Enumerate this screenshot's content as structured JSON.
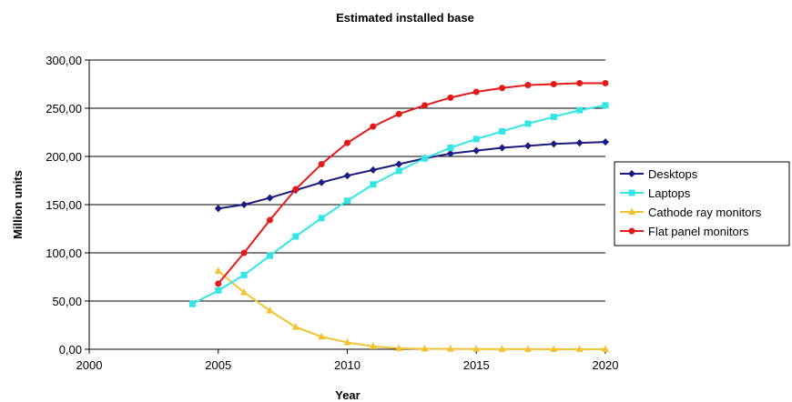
{
  "chart_data": {
    "type": "line",
    "title": "Estimated installed base",
    "xlabel": "Year",
    "ylabel": "Million units",
    "xlim": [
      2000,
      2020
    ],
    "ylim": [
      0,
      300
    ],
    "x_ticks": [
      "2000",
      "2005",
      "2010",
      "2015",
      "2020"
    ],
    "y_ticks": [
      "0,00",
      "50,00",
      "100,00",
      "150,00",
      "200,00",
      "250,00",
      "300,00"
    ],
    "grid": "horizontal",
    "legend_position": "right",
    "series": [
      {
        "name": "Desktops",
        "color": "#1a1a80",
        "marker": "diamond",
        "x": [
          2005,
          2006,
          2007,
          2008,
          2009,
          2010,
          2011,
          2012,
          2013,
          2014,
          2015,
          2016,
          2017,
          2018,
          2019,
          2020
        ],
        "values": [
          146,
          150,
          157,
          165,
          173,
          180,
          186,
          192,
          198,
          203,
          206,
          209,
          211,
          213,
          214,
          215
        ]
      },
      {
        "name": "Laptops",
        "color": "#33e6e6",
        "marker": "square",
        "x": [
          2004,
          2005,
          2006,
          2007,
          2008,
          2009,
          2010,
          2011,
          2012,
          2013,
          2014,
          2015,
          2016,
          2017,
          2018,
          2019,
          2020
        ],
        "values": [
          47,
          61,
          77,
          97,
          117,
          136,
          154,
          171,
          185,
          198,
          209,
          218,
          226,
          234,
          241,
          248,
          253
        ]
      },
      {
        "name": "Cathode ray monitors",
        "color": "#f2c233",
        "marker": "triangle",
        "x": [
          2005,
          2006,
          2007,
          2008,
          2009,
          2010,
          2011,
          2012,
          2013,
          2014,
          2015,
          2016,
          2017,
          2018,
          2019,
          2020
        ],
        "values": [
          81,
          59,
          40,
          23,
          13,
          7,
          3,
          1,
          0.5,
          0.3,
          0.2,
          0.1,
          0.1,
          0,
          0,
          0
        ]
      },
      {
        "name": "Flat panel monitors",
        "color": "#e61919",
        "marker": "circle",
        "x": [
          2005,
          2006,
          2007,
          2008,
          2009,
          2010,
          2011,
          2012,
          2013,
          2014,
          2015,
          2016,
          2017,
          2018,
          2019,
          2020
        ],
        "values": [
          68,
          100,
          134,
          166,
          192,
          214,
          231,
          244,
          253,
          261,
          267,
          271,
          274,
          275,
          276,
          276
        ]
      }
    ]
  }
}
